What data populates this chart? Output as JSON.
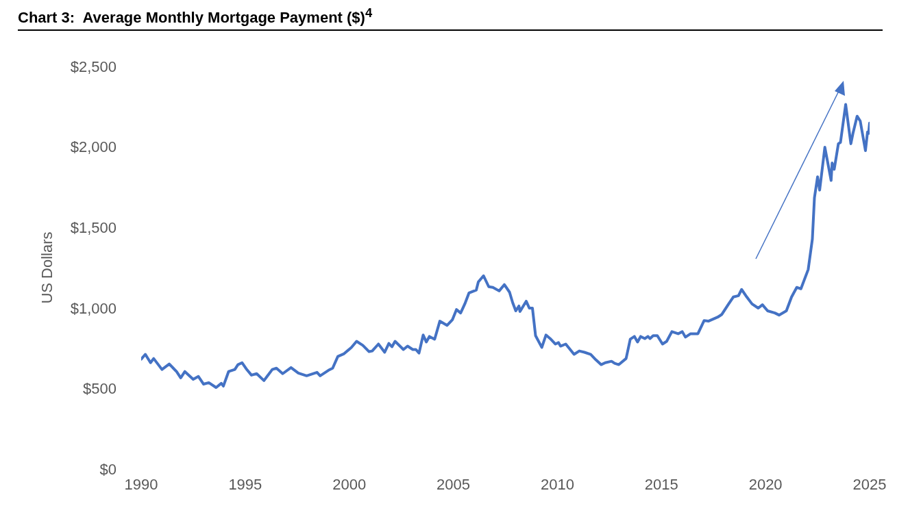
{
  "chart_data": {
    "type": "line",
    "title": "Chart 3:  Average Monthly Mortgage Payment ($)$^{4}$",
    "ylabel": "US Dollars",
    "xlim": [
      1990,
      2025
    ],
    "xticks": [
      1990,
      1995,
      2000,
      2005,
      2010,
      2015,
      2020,
      2025
    ],
    "ylim": [
      0,
      2500
    ],
    "yticks": [
      {
        "value": 0,
        "label": "$0"
      },
      {
        "value": 500,
        "label": "$500"
      },
      {
        "value": 1000,
        "label": "$1,000"
      },
      {
        "value": 1500,
        "label": "$1,500"
      },
      {
        "value": 2000,
        "label": "$2,000"
      },
      {
        "value": 2500,
        "label": "$2,500"
      }
    ],
    "marker": "none",
    "line_style": "solid",
    "series": [
      {
        "color": "#4472c4",
        "x": [
          1990.0,
          1990.2,
          1990.45,
          1990.6,
          1991.0,
          1991.35,
          1991.7,
          1991.9,
          1992.1,
          1992.5,
          1992.75,
          1993.0,
          1993.25,
          1993.6,
          1993.85,
          1993.95,
          1994.2,
          1994.5,
          1994.65,
          1994.85,
          1995.05,
          1995.3,
          1995.55,
          1995.9,
          1996.05,
          1996.3,
          1996.5,
          1996.8,
          1997.2,
          1997.55,
          1997.95,
          1998.45,
          1998.6,
          1999.0,
          1999.2,
          1999.45,
          1999.75,
          2000.1,
          2000.35,
          2000.65,
          2000.95,
          2001.1,
          2001.4,
          2001.7,
          2001.9,
          2002.05,
          2002.2,
          2002.6,
          2002.8,
          2003.05,
          2003.2,
          2003.35,
          2003.55,
          2003.7,
          2003.85,
          2004.1,
          2004.35,
          2004.7,
          2004.95,
          2005.15,
          2005.35,
          2005.55,
          2005.75,
          2006.1,
          2006.2,
          2006.45,
          2006.7,
          2006.9,
          2007.2,
          2007.45,
          2007.7,
          2007.85,
          2008.0,
          2008.15,
          2008.2,
          2008.5,
          2008.65,
          2008.8,
          2008.95,
          2009.25,
          2009.45,
          2009.65,
          2009.9,
          2010.05,
          2010.15,
          2010.4,
          2010.8,
          2011.05,
          2011.3,
          2011.6,
          2011.85,
          2012.1,
          2012.3,
          2012.6,
          2012.75,
          2012.95,
          2013.3,
          2013.5,
          2013.7,
          2013.85,
          2014.0,
          2014.2,
          2014.35,
          2014.45,
          2014.6,
          2014.8,
          2015.05,
          2015.25,
          2015.5,
          2015.8,
          2016.0,
          2016.15,
          2016.4,
          2016.75,
          2017.05,
          2017.25,
          2017.7,
          2017.9,
          2018.2,
          2018.45,
          2018.7,
          2018.85,
          2019.1,
          2019.35,
          2019.65,
          2019.85,
          2020.1,
          2020.45,
          2020.65,
          2021.0,
          2021.25,
          2021.5,
          2021.7,
          2022.05,
          2022.25,
          2022.35,
          2022.5,
          2022.6,
          2022.85,
          2023.15,
          2023.2,
          2023.3,
          2023.5,
          2023.6,
          2023.85,
          2024.1,
          2024.2,
          2024.4,
          2024.55,
          2024.8,
          2024.9,
          2024.95,
          2025.0
        ],
        "values": [
          682,
          712,
          660,
          686,
          618,
          652,
          605,
          566,
          605,
          557,
          575,
          527,
          536,
          506,
          532,
          515,
          605,
          618,
          648,
          660,
          622,
          583,
          592,
          549,
          575,
          618,
          626,
          592,
          630,
          596,
          579,
          600,
          579,
          613,
          626,
          699,
          716,
          755,
          793,
          768,
          729,
          733,
          776,
          725,
          780,
          759,
          793,
          742,
          763,
          742,
          742,
          720,
          832,
          789,
          823,
          806,
          918,
          892,
          926,
          990,
          969,
          1025,
          1093,
          1111,
          1162,
          1200,
          1132,
          1128,
          1106,
          1145,
          1098,
          1033,
          982,
          1012,
          978,
          1042,
          999,
          999,
          828,
          755,
          832,
          810,
          776,
          785,
          763,
          776,
          712,
          733,
          725,
          712,
          678,
          648,
          660,
          669,
          656,
          648,
          686,
          806,
          823,
          789,
          823,
          810,
          823,
          810,
          828,
          828,
          776,
          793,
          853,
          840,
          853,
          819,
          840,
          840,
          922,
          918,
          943,
          960,
          1020,
          1068,
          1076,
          1115,
          1068,
          1025,
          999,
          1020,
          982,
          969,
          956,
          982,
          1068,
          1128,
          1119,
          1239,
          1428,
          1685,
          1814,
          1732,
          1998,
          1792,
          1900,
          1861,
          2020,
          2028,
          2264,
          2020,
          2084,
          2191,
          2161,
          1977,
          2093,
          2084,
          2148
        ]
      }
    ]
  }
}
